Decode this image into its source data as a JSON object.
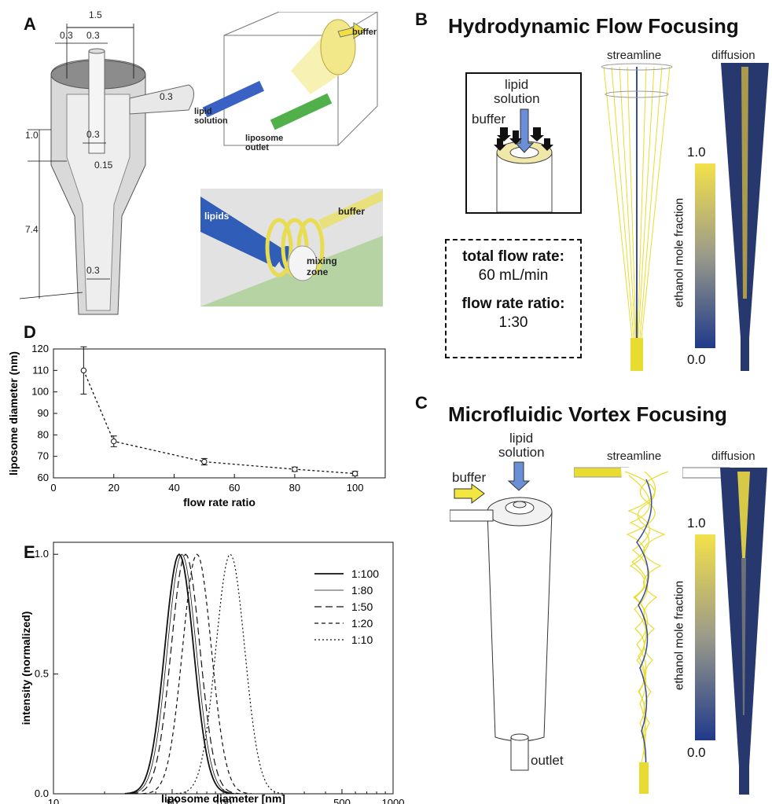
{
  "panelA": {
    "label": "A",
    "dims": {
      "d1": "1.5",
      "d2": "0.3",
      "d3": "0.3",
      "d4": "0.3",
      "d5": "1.0",
      "d6": "0.3",
      "d7": "0.15",
      "d8": "7.4",
      "d9": "0.3"
    },
    "labels": {
      "buffer": "buffer",
      "lipid": "lipid",
      "solution": "solution",
      "liposome": "liposome",
      "outlet": "outlet",
      "lipids": "lipids",
      "buffer2": "buffer",
      "mixing": "mixing",
      "zone": "zone"
    }
  },
  "panelB": {
    "label": "B",
    "title": "Hydrodynamic Flow Focusing",
    "streamline": "streamline",
    "diffusion": "diffusion",
    "inset": {
      "lipid": "lipid",
      "solution": "solution",
      "buffer": "buffer"
    },
    "info": {
      "total_label": "total flow rate:",
      "total_value": "60 mL/min",
      "ratio_label": "flow rate ratio:",
      "ratio_value": "1:30"
    },
    "colorbar": {
      "max": "1.0",
      "min": "0.0",
      "label": "ethanol mole fraction"
    }
  },
  "panelC": {
    "label": "C",
    "title": "Microfluidic Vortex Focusing",
    "lipid": "lipid",
    "solution": "solution",
    "buffer": "buffer",
    "outlet": "outlet",
    "streamline": "streamline",
    "diffusion": "diffusion",
    "colorbar": {
      "max": "1.0",
      "min": "0.0",
      "label": "ethanol mole fraction"
    }
  },
  "panelD": {
    "label": "D"
  },
  "panelE": {
    "label": "E"
  },
  "chart_data": [
    {
      "type": "scatter",
      "panel": "D",
      "xlabel": "flow rate ratio",
      "ylabel": "liposome diameter (nm)",
      "xlim": [
        0,
        110
      ],
      "ylim": [
        60,
        120
      ],
      "xticks": [
        0,
        20,
        40,
        60,
        80,
        100
      ],
      "yticks": [
        60,
        70,
        80,
        90,
        100,
        110,
        120
      ],
      "line_style": "dotted",
      "x": [
        10,
        20,
        50,
        80,
        100
      ],
      "y": [
        110,
        77,
        67.5,
        64,
        62
      ],
      "error": [
        11,
        2.5,
        1.5,
        1,
        1
      ]
    },
    {
      "type": "line",
      "panel": "E",
      "xlabel": "liposome diameter [nm]",
      "ylabel": "intensity (normalized)",
      "xscale": "log",
      "xlim": [
        10,
        1000
      ],
      "ylim": [
        0,
        1.05
      ],
      "xticks": [
        10,
        50,
        100,
        500,
        1000
      ],
      "yticks": [
        0.0,
        0.5,
        1.0
      ],
      "legend": "top-right",
      "series": [
        {
          "name": "1:100",
          "peak": 55,
          "style": "solid-thick"
        },
        {
          "name": "1:80",
          "peak": 57,
          "style": "solid-thin"
        },
        {
          "name": "1:50",
          "peak": 60,
          "style": "long-dash"
        },
        {
          "name": "1:20",
          "peak": 70,
          "style": "dash"
        },
        {
          "name": "1:10",
          "peak": 110,
          "style": "dot"
        }
      ]
    }
  ]
}
